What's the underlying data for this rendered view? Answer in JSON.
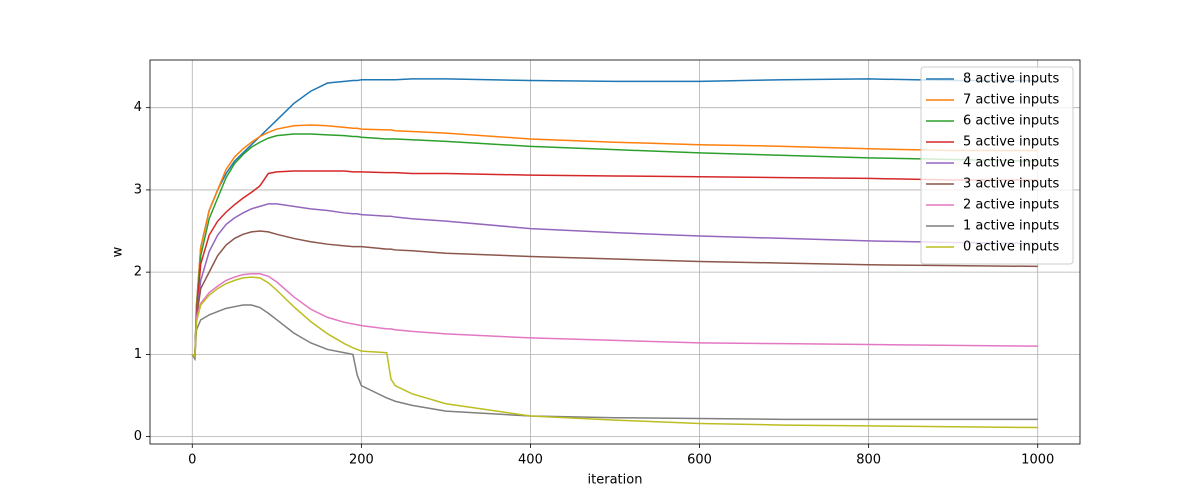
{
  "chart_data": {
    "type": "line",
    "x_label": "iteration",
    "y_label": "w",
    "x": [
      0,
      3,
      5,
      10,
      20,
      30,
      40,
      50,
      60,
      70,
      80,
      90,
      100,
      120,
      140,
      160,
      180,
      190,
      195,
      200,
      230,
      235,
      240,
      260,
      300,
      400,
      500,
      600,
      700,
      800,
      900,
      1000
    ],
    "xlim": [
      -50,
      1050
    ],
    "xticks": [
      0,
      200,
      400,
      600,
      800,
      1000
    ],
    "ylim": [
      -0.09,
      4.58
    ],
    "yticks": [
      0,
      1,
      2,
      3,
      4
    ],
    "grid": true,
    "legend_position": "upper right",
    "series": [
      {
        "name": "8 active inputs",
        "color": "#1f77b4",
        "values": [
          1,
          0.95,
          1.6,
          2.3,
          2.75,
          3.0,
          3.2,
          3.35,
          3.45,
          3.55,
          3.65,
          3.75,
          3.85,
          4.05,
          4.2,
          4.3,
          4.32,
          4.33,
          4.33,
          4.34,
          4.34,
          4.34,
          4.34,
          4.35,
          4.35,
          4.33,
          4.32,
          4.32,
          4.34,
          4.35,
          4.33,
          4.33
        ]
      },
      {
        "name": "7 active inputs",
        "color": "#ff7f0e",
        "values": [
          1,
          0.95,
          1.6,
          2.3,
          2.75,
          3.0,
          3.25,
          3.4,
          3.5,
          3.58,
          3.65,
          3.7,
          3.74,
          3.78,
          3.79,
          3.78,
          3.76,
          3.75,
          3.75,
          3.74,
          3.73,
          3.73,
          3.72,
          3.71,
          3.69,
          3.62,
          3.58,
          3.55,
          3.53,
          3.5,
          3.48,
          3.48
        ]
      },
      {
        "name": "6 active inputs",
        "color": "#2ca02c",
        "values": [
          1,
          0.95,
          1.55,
          2.2,
          2.65,
          2.9,
          3.15,
          3.32,
          3.43,
          3.52,
          3.58,
          3.63,
          3.66,
          3.68,
          3.68,
          3.67,
          3.66,
          3.65,
          3.65,
          3.64,
          3.62,
          3.62,
          3.62,
          3.61,
          3.59,
          3.53,
          3.49,
          3.45,
          3.42,
          3.39,
          3.37,
          3.35
        ]
      },
      {
        "name": "5 active inputs",
        "color": "#d62728",
        "values": [
          1,
          0.95,
          1.5,
          2.1,
          2.45,
          2.62,
          2.73,
          2.82,
          2.9,
          2.97,
          3.05,
          3.2,
          3.22,
          3.23,
          3.23,
          3.23,
          3.23,
          3.22,
          3.22,
          3.22,
          3.21,
          3.21,
          3.21,
          3.2,
          3.2,
          3.18,
          3.17,
          3.16,
          3.15,
          3.14,
          3.12,
          3.12
        ]
      },
      {
        "name": "4 active inputs",
        "color": "#9467bd",
        "values": [
          1,
          0.95,
          1.45,
          1.9,
          2.25,
          2.45,
          2.58,
          2.66,
          2.72,
          2.77,
          2.8,
          2.83,
          2.83,
          2.8,
          2.77,
          2.75,
          2.72,
          2.71,
          2.71,
          2.7,
          2.68,
          2.68,
          2.67,
          2.65,
          2.62,
          2.53,
          2.48,
          2.44,
          2.41,
          2.38,
          2.36,
          2.35
        ]
      },
      {
        "name": "3 active inputs",
        "color": "#8c564b",
        "values": [
          1,
          0.95,
          1.45,
          1.8,
          2.0,
          2.2,
          2.33,
          2.41,
          2.46,
          2.49,
          2.5,
          2.49,
          2.46,
          2.41,
          2.37,
          2.34,
          2.32,
          2.31,
          2.31,
          2.31,
          2.28,
          2.28,
          2.27,
          2.26,
          2.23,
          2.19,
          2.16,
          2.13,
          2.11,
          2.09,
          2.08,
          2.07
        ]
      },
      {
        "name": "2 active inputs",
        "color": "#e377c2",
        "values": [
          1,
          0.95,
          1.45,
          1.62,
          1.75,
          1.83,
          1.9,
          1.94,
          1.97,
          1.98,
          1.98,
          1.95,
          1.88,
          1.7,
          1.55,
          1.45,
          1.39,
          1.37,
          1.36,
          1.35,
          1.31,
          1.31,
          1.3,
          1.28,
          1.25,
          1.2,
          1.17,
          1.14,
          1.13,
          1.12,
          1.11,
          1.1
        ]
      },
      {
        "name": "1 active inputs",
        "color": "#7f7f7f",
        "values": [
          1,
          0.95,
          1.3,
          1.42,
          1.48,
          1.52,
          1.56,
          1.58,
          1.6,
          1.6,
          1.57,
          1.5,
          1.42,
          1.26,
          1.14,
          1.06,
          1.02,
          1.0,
          0.75,
          0.62,
          0.47,
          0.45,
          0.43,
          0.38,
          0.31,
          0.25,
          0.23,
          0.22,
          0.21,
          0.21,
          0.21,
          0.21
        ]
      },
      {
        "name": "0 active inputs",
        "color": "#bcbd22",
        "values": [
          1,
          0.97,
          1.4,
          1.6,
          1.72,
          1.8,
          1.86,
          1.9,
          1.93,
          1.94,
          1.93,
          1.87,
          1.78,
          1.58,
          1.4,
          1.25,
          1.13,
          1.08,
          1.06,
          1.04,
          1.02,
          0.7,
          0.62,
          0.52,
          0.4,
          0.25,
          0.2,
          0.16,
          0.14,
          0.13,
          0.12,
          0.11
        ]
      }
    ]
  }
}
